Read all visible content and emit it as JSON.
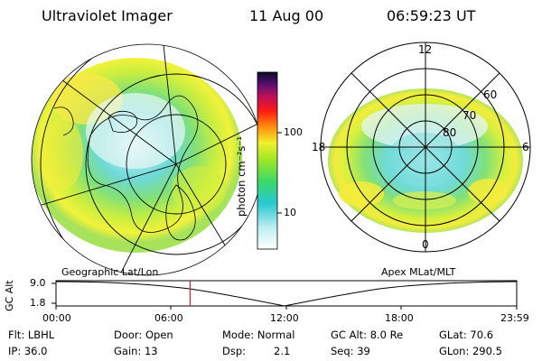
{
  "header": {
    "instrument": "Ultraviolet Imager",
    "date": "11 Aug 00",
    "time": "06:59:23 UT"
  },
  "colorbar": {
    "unit_label": "photon cm⁻²s⁻¹",
    "tick_high": "100",
    "tick_low": "10"
  },
  "polar_plot": {
    "label_top": "12",
    "label_left": "18",
    "label_right": "6",
    "label_bottom": "0",
    "ring_labels": [
      "60",
      "70",
      "80"
    ]
  },
  "panel_labels": {
    "left": "Geographic Lat/Lon",
    "right": "Apex MLat/MLT"
  },
  "altitude_plot": {
    "ylabel": "GC Alt",
    "ymax": "9.0",
    "ymin": "1.8",
    "xticks": [
      "00:00",
      "06:00",
      "12:00",
      "18:00",
      "23:59"
    ],
    "current_time_fraction": 0.291
  },
  "status": {
    "flt": "Flt: LBHL",
    "ip": "IP: 36.0",
    "door": "Door: Open",
    "gain": "Gain: 13",
    "mode": "Mode: Normal",
    "dsp": "Dsp:",
    "dsp_value": "2.1",
    "gc_alt": "GC Alt: 8.0 Re",
    "seq": "Seq: 39",
    "glat": "GLat:  70.6",
    "glon": "GLon: 290.5"
  }
}
